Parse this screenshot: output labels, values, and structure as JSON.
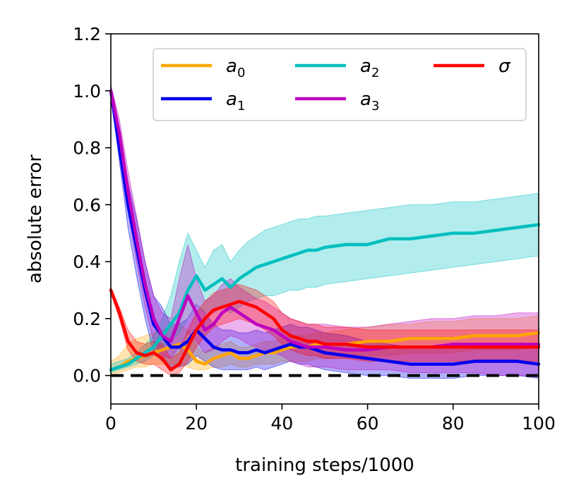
{
  "chart_data": {
    "type": "line",
    "title": "",
    "xlabel": "training steps/1000",
    "ylabel": "absolute error",
    "xlim": [
      0,
      100
    ],
    "ylim": [
      -0.1,
      1.2
    ],
    "xticks": [
      0,
      20,
      40,
      60,
      80,
      100
    ],
    "yticks": [
      0.0,
      0.2,
      0.4,
      0.6,
      0.8,
      1.0,
      1.2
    ],
    "xtick_labels": [
      "0",
      "20",
      "40",
      "60",
      "80",
      "100"
    ],
    "ytick_labels": [
      "0.0",
      "0.2",
      "0.4",
      "0.6",
      "0.8",
      "1.0",
      "1.2"
    ],
    "reference_line": {
      "y": 0.0,
      "style": "dashed",
      "color": "#000000"
    },
    "legend_position": "top-right",
    "legend_columns": 3,
    "x": [
      0,
      2,
      4,
      6,
      8,
      10,
      12,
      14,
      16,
      18,
      20,
      22,
      24,
      26,
      28,
      30,
      32,
      34,
      36,
      38,
      40,
      42,
      44,
      46,
      48,
      50,
      55,
      60,
      65,
      70,
      75,
      80,
      85,
      90,
      95,
      100
    ],
    "series": [
      {
        "name": "a0",
        "label_base": "a",
        "label_sub": "0",
        "color": "#ffa500",
        "values": [
          0.02,
          0.03,
          0.05,
          0.06,
          0.07,
          0.08,
          0.09,
          0.1,
          0.11,
          0.09,
          0.05,
          0.04,
          0.06,
          0.07,
          0.08,
          0.06,
          0.06,
          0.07,
          0.08,
          0.08,
          0.09,
          0.1,
          0.1,
          0.1,
          0.11,
          0.11,
          0.11,
          0.12,
          0.12,
          0.13,
          0.13,
          0.13,
          0.14,
          0.14,
          0.14,
          0.15
        ],
        "lower": [
          0.0,
          0.01,
          0.02,
          0.03,
          0.03,
          0.04,
          0.04,
          0.04,
          0.04,
          0.03,
          0.02,
          0.02,
          0.03,
          0.03,
          0.04,
          0.03,
          0.03,
          0.04,
          0.04,
          0.04,
          0.05,
          0.05,
          0.05,
          0.05,
          0.06,
          0.06,
          0.06,
          0.07,
          0.07,
          0.08,
          0.08,
          0.08,
          0.09,
          0.09,
          0.09,
          0.1
        ],
        "upper": [
          0.05,
          0.07,
          0.11,
          0.13,
          0.14,
          0.15,
          0.16,
          0.17,
          0.18,
          0.16,
          0.1,
          0.08,
          0.1,
          0.11,
          0.12,
          0.1,
          0.1,
          0.11,
          0.12,
          0.12,
          0.13,
          0.14,
          0.14,
          0.14,
          0.15,
          0.15,
          0.16,
          0.17,
          0.18,
          0.18,
          0.19,
          0.19,
          0.2,
          0.2,
          0.2,
          0.21
        ]
      },
      {
        "name": "a1",
        "label_base": "a",
        "label_sub": "1",
        "color": "#0000ee",
        "values": [
          1.0,
          0.8,
          0.6,
          0.45,
          0.3,
          0.18,
          0.14,
          0.1,
          0.1,
          0.12,
          0.16,
          0.13,
          0.1,
          0.09,
          0.09,
          0.08,
          0.08,
          0.09,
          0.08,
          0.09,
          0.1,
          0.11,
          0.1,
          0.1,
          0.09,
          0.08,
          0.07,
          0.06,
          0.05,
          0.04,
          0.04,
          0.04,
          0.05,
          0.05,
          0.05,
          0.04
        ],
        "lower": [
          0.98,
          0.75,
          0.52,
          0.35,
          0.2,
          0.08,
          0.05,
          0.03,
          0.03,
          0.04,
          0.07,
          0.05,
          0.03,
          0.02,
          0.02,
          0.02,
          0.02,
          0.03,
          0.02,
          0.03,
          0.04,
          0.05,
          0.04,
          0.04,
          0.03,
          0.02,
          0.01,
          0.0,
          0.0,
          -0.01,
          -0.01,
          -0.01,
          0.0,
          0.0,
          0.0,
          -0.01
        ],
        "upper": [
          1.02,
          0.85,
          0.68,
          0.55,
          0.4,
          0.28,
          0.24,
          0.18,
          0.18,
          0.2,
          0.25,
          0.22,
          0.18,
          0.16,
          0.16,
          0.15,
          0.15,
          0.16,
          0.15,
          0.16,
          0.17,
          0.18,
          0.17,
          0.17,
          0.16,
          0.15,
          0.14,
          0.12,
          0.11,
          0.1,
          0.1,
          0.1,
          0.11,
          0.11,
          0.11,
          0.1
        ]
      },
      {
        "name": "a2",
        "label_base": "a",
        "label_sub": "2",
        "color": "#00bfbf",
        "values": [
          0.02,
          0.03,
          0.04,
          0.06,
          0.08,
          0.1,
          0.14,
          0.18,
          0.22,
          0.3,
          0.35,
          0.3,
          0.32,
          0.34,
          0.31,
          0.34,
          0.36,
          0.38,
          0.39,
          0.4,
          0.41,
          0.42,
          0.43,
          0.44,
          0.44,
          0.45,
          0.46,
          0.46,
          0.48,
          0.48,
          0.49,
          0.5,
          0.5,
          0.51,
          0.52,
          0.53
        ],
        "lower": [
          0.01,
          0.02,
          0.03,
          0.04,
          0.05,
          0.07,
          0.1,
          0.12,
          0.15,
          0.2,
          0.25,
          0.22,
          0.22,
          0.24,
          0.22,
          0.24,
          0.26,
          0.27,
          0.28,
          0.28,
          0.29,
          0.3,
          0.3,
          0.31,
          0.31,
          0.32,
          0.33,
          0.34,
          0.35,
          0.36,
          0.37,
          0.38,
          0.39,
          0.4,
          0.41,
          0.42
        ],
        "upper": [
          0.04,
          0.05,
          0.06,
          0.08,
          0.11,
          0.14,
          0.2,
          0.28,
          0.4,
          0.5,
          0.44,
          0.38,
          0.44,
          0.46,
          0.4,
          0.44,
          0.47,
          0.49,
          0.51,
          0.52,
          0.53,
          0.54,
          0.55,
          0.55,
          0.56,
          0.56,
          0.57,
          0.58,
          0.59,
          0.6,
          0.6,
          0.61,
          0.61,
          0.62,
          0.63,
          0.64
        ]
      },
      {
        "name": "a3",
        "label_base": "a",
        "label_sub": "3",
        "color": "#bf00bf",
        "values": [
          1.0,
          0.85,
          0.65,
          0.48,
          0.32,
          0.2,
          0.14,
          0.12,
          0.2,
          0.28,
          0.22,
          0.16,
          0.18,
          0.22,
          0.24,
          0.22,
          0.2,
          0.18,
          0.17,
          0.16,
          0.14,
          0.12,
          0.11,
          0.1,
          0.1,
          0.1,
          0.09,
          0.09,
          0.1,
          0.1,
          0.1,
          0.11,
          0.11,
          0.11,
          0.11,
          0.11
        ],
        "lower": [
          0.98,
          0.8,
          0.58,
          0.4,
          0.24,
          0.12,
          0.07,
          0.06,
          0.1,
          0.15,
          0.12,
          0.08,
          0.09,
          0.12,
          0.14,
          0.13,
          0.11,
          0.1,
          0.09,
          0.08,
          0.07,
          0.05,
          0.04,
          0.03,
          0.03,
          0.03,
          0.02,
          0.02,
          0.02,
          0.01,
          0.01,
          0.01,
          0.01,
          0.0,
          0.0,
          0.0
        ],
        "upper": [
          1.02,
          0.9,
          0.72,
          0.56,
          0.4,
          0.28,
          0.22,
          0.2,
          0.34,
          0.46,
          0.34,
          0.26,
          0.28,
          0.32,
          0.34,
          0.31,
          0.29,
          0.27,
          0.26,
          0.24,
          0.22,
          0.2,
          0.19,
          0.18,
          0.18,
          0.18,
          0.17,
          0.17,
          0.18,
          0.19,
          0.2,
          0.2,
          0.21,
          0.21,
          0.22,
          0.22
        ]
      },
      {
        "name": "sigma",
        "label_base": "σ",
        "label_sub": "",
        "color": "#ff0000",
        "values": [
          0.3,
          0.22,
          0.12,
          0.08,
          0.07,
          0.08,
          0.06,
          0.02,
          0.04,
          0.1,
          0.16,
          0.2,
          0.23,
          0.24,
          0.25,
          0.26,
          0.25,
          0.24,
          0.22,
          0.2,
          0.16,
          0.14,
          0.13,
          0.12,
          0.12,
          0.11,
          0.11,
          0.1,
          0.1,
          0.1,
          0.1,
          0.1,
          0.1,
          0.1,
          0.1,
          0.1
        ],
        "lower": [
          0.29,
          0.2,
          0.09,
          0.05,
          0.04,
          0.04,
          0.02,
          0.0,
          0.01,
          0.05,
          0.1,
          0.14,
          0.17,
          0.18,
          0.19,
          0.2,
          0.19,
          0.18,
          0.16,
          0.14,
          0.11,
          0.09,
          0.08,
          0.07,
          0.07,
          0.06,
          0.06,
          0.05,
          0.05,
          0.05,
          0.05,
          0.05,
          0.05,
          0.05,
          0.05,
          0.05
        ],
        "upper": [
          0.31,
          0.24,
          0.16,
          0.12,
          0.11,
          0.12,
          0.11,
          0.06,
          0.08,
          0.16,
          0.22,
          0.26,
          0.29,
          0.3,
          0.31,
          0.32,
          0.31,
          0.3,
          0.28,
          0.26,
          0.22,
          0.2,
          0.19,
          0.18,
          0.18,
          0.17,
          0.17,
          0.16,
          0.16,
          0.16,
          0.16,
          0.16,
          0.16,
          0.16,
          0.16,
          0.16
        ]
      }
    ]
  }
}
